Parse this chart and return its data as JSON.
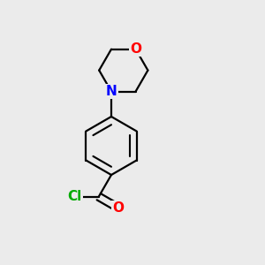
{
  "background_color": "#ebebeb",
  "line_color": "#000000",
  "bond_width": 1.6,
  "atom_colors": {
    "O": "#ff0000",
    "N": "#0000ff",
    "Cl": "#00aa00"
  },
  "font_size": 11,
  "figsize": [
    3.0,
    3.0
  ],
  "dpi": 100,
  "xlim": [
    0,
    10
  ],
  "ylim": [
    0,
    10
  ]
}
